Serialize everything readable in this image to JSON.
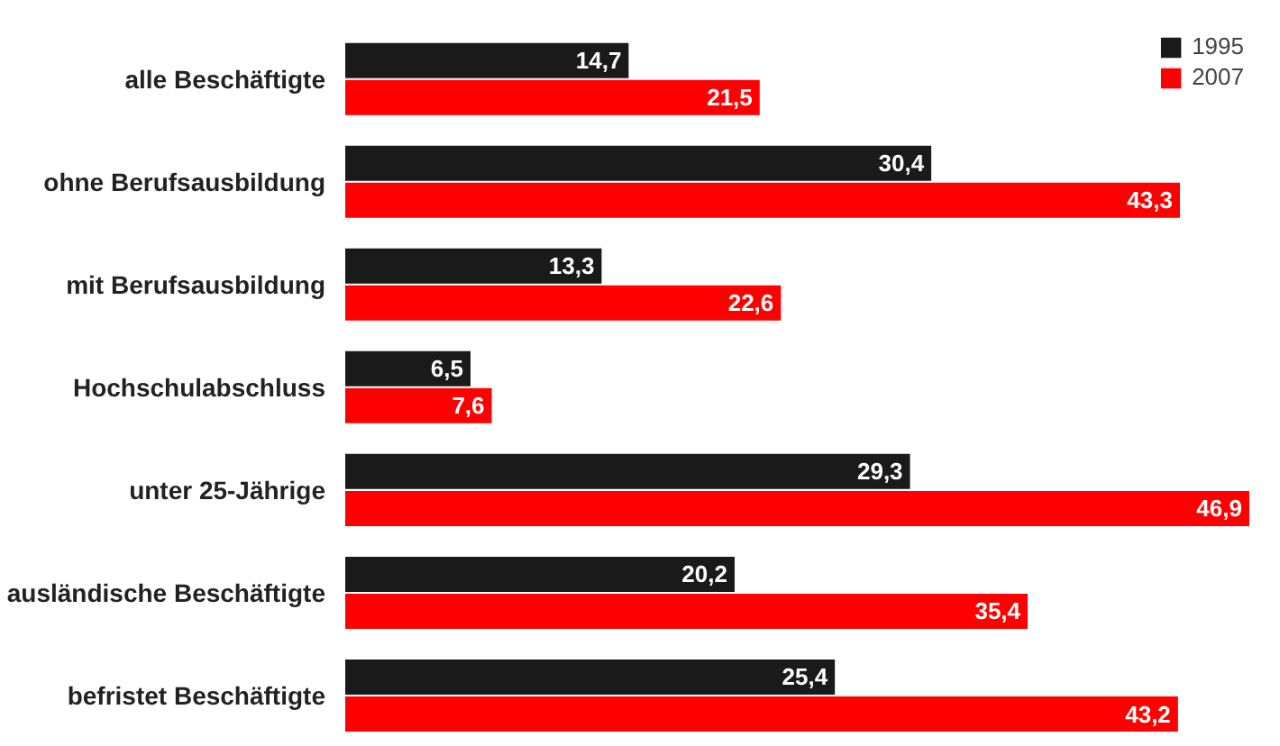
{
  "chart_data": {
    "type": "bar",
    "orientation": "horizontal",
    "categories": [
      "alle Beschäftigte",
      "ohne Berufsausbildung",
      "mit Berufsausbildung",
      "Hochschulabschluss",
      "unter 25-Jährige",
      "ausländische Beschäftigte",
      "befristet Beschäftigte"
    ],
    "series": [
      {
        "name": "1995",
        "color": "#1a1a1a",
        "values": [
          14.7,
          30.4,
          13.3,
          6.5,
          29.3,
          20.2,
          25.4
        ],
        "value_labels": [
          "14,7",
          "30,4",
          "13,3",
          "6,5",
          "29,3",
          "20,2",
          "25,4"
        ]
      },
      {
        "name": "2007",
        "color": "#ff0000",
        "values": [
          21.5,
          43.3,
          22.6,
          7.6,
          46.9,
          35.4,
          43.2
        ],
        "value_labels": [
          "21,5",
          "43,3",
          "22,6",
          "7,6",
          "46,9",
          "35,4",
          "43,2"
        ]
      }
    ],
    "legend": "top right",
    "grid": false
  }
}
